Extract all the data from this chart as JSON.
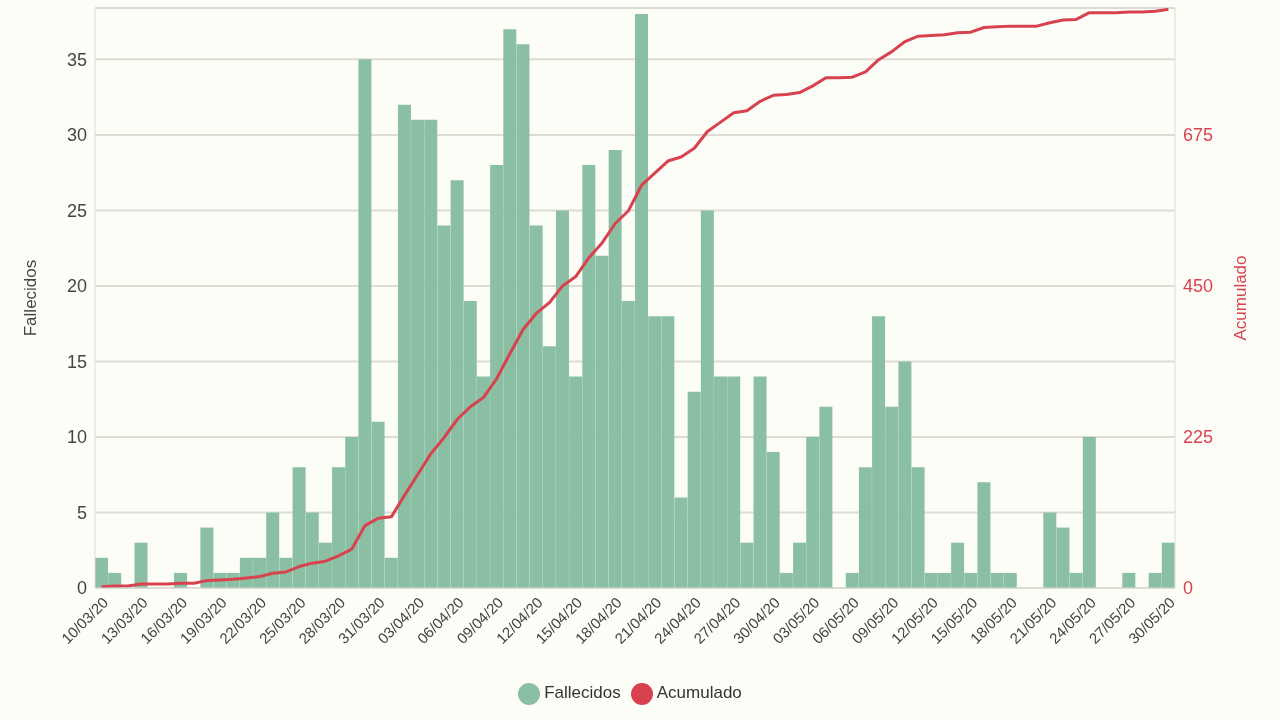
{
  "chart_data": {
    "type": "bar",
    "ylabel": "Fallecidos",
    "y2label": "Acumulado",
    "categories": [
      "10/03/20",
      null,
      null,
      "13/03/20",
      null,
      null,
      "16/03/20",
      null,
      null,
      "19/03/20",
      null,
      null,
      "22/03/20",
      null,
      null,
      "25/03/20",
      null,
      null,
      "28/03/20",
      null,
      null,
      "31/03/20",
      null,
      null,
      "03/04/20",
      null,
      null,
      "06/04/20",
      null,
      null,
      "09/04/20",
      null,
      null,
      "12/04/20",
      null,
      null,
      "15/04/20",
      null,
      null,
      "18/04/20",
      null,
      null,
      "21/04/20",
      null,
      null,
      "24/04/20",
      null,
      null,
      "27/04/20",
      null,
      null,
      "30/04/20",
      null,
      null,
      "03/05/20",
      null,
      null,
      "06/05/20",
      null,
      null,
      "09/05/20",
      null,
      null,
      "12/05/20",
      null,
      null,
      "15/05/20",
      null,
      null,
      "18/05/20",
      null,
      null,
      "21/05/20",
      null,
      null,
      "24/05/20",
      null,
      null,
      "27/05/20",
      null,
      null,
      "30/05/20"
    ],
    "series": [
      {
        "name": "Fallecidos",
        "color": "#8bbfa4",
        "values": [
          2,
          1,
          0,
          3,
          0,
          0,
          1,
          0,
          4,
          1,
          1,
          2,
          2,
          5,
          2,
          8,
          5,
          3,
          8,
          10,
          35,
          11,
          2,
          32,
          31,
          31,
          24,
          27,
          19,
          14,
          28,
          37,
          36,
          24,
          16,
          25,
          14,
          28,
          22,
          29,
          19,
          38,
          18,
          18,
          6,
          13,
          25,
          14,
          14,
          3,
          14,
          9,
          1,
          3,
          10,
          12,
          0,
          1,
          8,
          18,
          12,
          15,
          8,
          1,
          1,
          3,
          1,
          7,
          1,
          1,
          0,
          0,
          5,
          4,
          1,
          10,
          0,
          0,
          1,
          0,
          1,
          3
        ]
      },
      {
        "name": "Acumulado",
        "type": "line",
        "axis": "y2",
        "color": "#d8424f",
        "values": [
          2,
          3,
          3,
          6,
          6,
          6,
          7,
          7,
          11,
          12,
          13,
          15,
          17,
          22,
          24,
          32,
          37,
          40,
          48,
          58,
          93,
          104,
          106,
          138,
          169,
          200,
          224,
          251,
          270,
          284,
          312,
          349,
          385,
          409,
          425,
          450,
          464,
          492,
          514,
          543,
          562,
          600,
          618,
          636,
          642,
          655,
          680,
          694,
          708,
          711,
          725,
          734,
          735,
          738,
          748,
          760,
          760,
          761,
          769,
          787,
          799,
          814,
          822,
          823,
          824,
          827,
          828,
          835,
          836,
          837,
          837,
          837,
          842,
          846,
          847,
          857,
          857,
          857,
          858,
          858,
          859,
          862
        ]
      }
    ],
    "ylim": [
      0,
      38.4
    ],
    "yticks": [
      0,
      5,
      10,
      15,
      20,
      25,
      30,
      35
    ],
    "y2lim": [
      0,
      864
    ],
    "y2ticks": [
      0,
      225,
      450,
      675
    ],
    "grid": "y",
    "legend": "bottom",
    "marker": "none",
    "line_style": "solid"
  }
}
